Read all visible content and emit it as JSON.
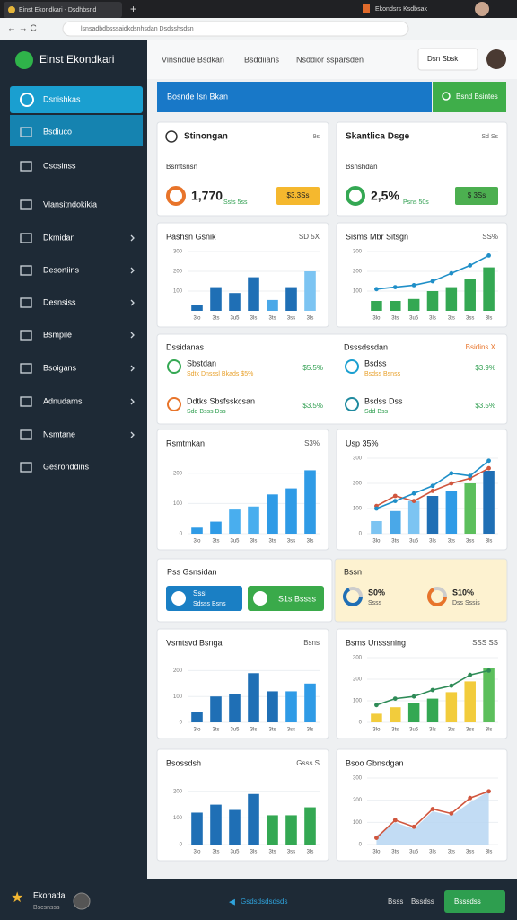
{
  "browser": {
    "tab": "Einst Ekondkari - Dsdhbsnd",
    "tab2": "Ekondsrs Ksdbsak",
    "url": "lsnsadbdbsssaidkdsnhsdan Dsdsshsdsn"
  },
  "sidebar": {
    "brand": "Einst Ekondkari",
    "items": [
      "Dsnishkas",
      "Bsdiuco",
      "Csosinss",
      "Vlansitndokikia",
      "Dkmidan",
      "Desortiins",
      "Desnsiss",
      "Bsmpile",
      "Bsoigans",
      "Adnudarns",
      "Nsmtane",
      "Gesronddins"
    ]
  },
  "header": {
    "links": [
      "Vinsndue Bsdkan",
      "Bsddiians",
      "Nsddior ssparsden"
    ],
    "dropdown": "Dsn Sbsk"
  },
  "banner": {
    "title": "Bosnde Isn Bkan",
    "button": "Bsnd Bsintes"
  },
  "stats": [
    {
      "title": "Stinongan",
      "corner": "9s",
      "label": "Bsmtsnsn",
      "value": "1,770",
      "note": "Ssfs 5ss",
      "tag": "$3.3Ss"
    },
    {
      "title": "Skantlica Dsge",
      "corner": "Sd Ss",
      "label": "Bsnshdan",
      "value": "2,5%",
      "note": "Psns 50s",
      "tag": "$ 3Ss"
    }
  ],
  "lists": {
    "left": {
      "title": "Dssidanas",
      "items": [
        {
          "title": "Sbstdan",
          "sub": "Sdtk Dnsssl Bkads $5%",
          "value": "$5.5%"
        },
        {
          "title": "Ddtks Sbsfsskcsan",
          "sub": "Sdd Bsss Dss",
          "value": "$3.5%"
        }
      ]
    },
    "right": {
      "title": "Dsssdssdan",
      "corner": "Bsidins X",
      "items": [
        {
          "title": "Bsdss",
          "sub": "Bsdss Bsnss",
          "value": "$3.9%"
        },
        {
          "title": "Bsdss Dss",
          "sub": "Sdd Bss",
          "value": "$3.5%"
        }
      ]
    }
  },
  "promo": {
    "title": "Pss Gsnsidan",
    "buttons": [
      {
        "title": "Sssi",
        "sub": "Sdsss Bsns"
      },
      {
        "title": "S1s Bssss"
      }
    ]
  },
  "summary": {
    "title": "Bssn",
    "items": [
      {
        "value": "S0%",
        "sub": "Ssss"
      },
      {
        "value": "S10%",
        "sub": "Dss Sssis"
      }
    ]
  },
  "charts": [
    {
      "title": "Pashsn Gsnik",
      "corner": "SD 5X",
      "type": "bar",
      "categories": [
        "3lo",
        "3ts",
        "3u5",
        "3ls",
        "3ts",
        "3ss",
        "3ls"
      ],
      "values": [
        30,
        120,
        90,
        170,
        55,
        120,
        200
      ],
      "colors": [
        "#1f6fb5",
        "#1f6fb5",
        "#1f6fb5",
        "#1f6fb5",
        "#4aa8e8",
        "#1f6fb5",
        "#7cc4f2"
      ],
      "ylim": [
        0,
        300
      ],
      "yticks": [
        100,
        200,
        300
      ]
    },
    {
      "title": "Sisms Mbr Sitsgn",
      "corner": "SS%",
      "type": "bar",
      "categories": [
        "3lo",
        "3ts",
        "3u5",
        "3ls",
        "3ts",
        "3ss",
        "3ls"
      ],
      "values": [
        50,
        50,
        60,
        100,
        120,
        160,
        220
      ],
      "colors": [
        "#34a853",
        "#34a853",
        "#34a853",
        "#34a853",
        "#34a853",
        "#34a853",
        "#34a853"
      ],
      "ylim": [
        0,
        300
      ],
      "yticks": [
        100,
        200,
        300
      ],
      "lines": [
        {
          "color": "#1f8fc8",
          "values": [
            110,
            120,
            130,
            150,
            190,
            230,
            280
          ]
        }
      ]
    },
    {
      "title": "Rsmtmkan",
      "corner": "S3%",
      "type": "bar",
      "categories": [
        "3lo",
        "3ts",
        "3u5",
        "3ls",
        "3ts",
        "3ss",
        "3ls"
      ],
      "values": [
        20,
        40,
        80,
        90,
        130,
        150,
        210
      ],
      "colors": [
        "#2f9be6",
        "#2f9be6",
        "#49aeee",
        "#49aeee",
        "#2f9be6",
        "#2f9be6",
        "#2f9be6"
      ],
      "ylim": [
        0,
        250
      ],
      "yticks": [
        0,
        100,
        200
      ]
    },
    {
      "title": "Usp 35%",
      "corner": "",
      "type": "bar",
      "categories": [
        "3lo",
        "3ts",
        "3u5",
        "3ls",
        "3ts",
        "3ss",
        "3ls"
      ],
      "values": [
        50,
        90,
        130,
        150,
        170,
        200,
        250
      ],
      "colors": [
        "#7cc4f2",
        "#4aa8e8",
        "#7cc4f2",
        "#1f6fb5",
        "#2f9be6",
        "#5cbf5c",
        "#1f6fb5"
      ],
      "ylim": [
        0,
        300
      ],
      "yticks": [
        0,
        100,
        200,
        300
      ],
      "lines": [
        {
          "color": "#d0563e",
          "values": [
            110,
            150,
            130,
            170,
            200,
            220,
            260
          ]
        },
        {
          "color": "#1f8fc8",
          "values": [
            100,
            130,
            160,
            190,
            240,
            230,
            290
          ]
        }
      ]
    },
    {
      "title": "Vsmtsvd Bsnga",
      "corner": "Bsns",
      "type": "bar",
      "categories": [
        "3lo",
        "3ts",
        "3u5",
        "3ls",
        "3ts",
        "3ss",
        "3ls"
      ],
      "values": [
        40,
        100,
        110,
        190,
        120,
        120,
        150
      ],
      "colors": [
        "#1f6fb5",
        "#1f6fb5",
        "#1f6fb5",
        "#1f6fb5",
        "#1f6fb5",
        "#2f9be6",
        "#2f9be6"
      ],
      "ylim": [
        0,
        250
      ],
      "yticks": [
        0,
        100,
        200
      ]
    },
    {
      "title": "Bsms Unsssning",
      "corner": "SSS SS",
      "type": "bar",
      "categories": [
        "3lo",
        "3ts",
        "3u5",
        "3ls",
        "3ts",
        "3ss",
        "3ls"
      ],
      "values": [
        40,
        70,
        90,
        110,
        140,
        190,
        250
      ],
      "colors": [
        "#f2cc3c",
        "#f2cc3c",
        "#34a853",
        "#34a853",
        "#f2cc3c",
        "#f2cc3c",
        "#5cbf5c"
      ],
      "ylim": [
        0,
        300
      ],
      "yticks": [
        0,
        100,
        200,
        300
      ],
      "lines": [
        {
          "color": "#2e8b57",
          "values": [
            80,
            110,
            120,
            150,
            170,
            220,
            240
          ]
        }
      ]
    },
    {
      "title": "Bsossdsh",
      "corner": "Gsss S",
      "type": "bar",
      "categories": [
        "3lo",
        "3ts",
        "3u5",
        "3ls",
        "3ts",
        "3ss",
        "3ls"
      ],
      "values": [
        120,
        150,
        130,
        190,
        110,
        110,
        140
      ],
      "colors": [
        "#1f6fb5",
        "#1f6fb5",
        "#1f6fb5",
        "#1f6fb5",
        "#34a853",
        "#34a853",
        "#34a853"
      ],
      "ylim": [
        0,
        250
      ],
      "yticks": [
        0,
        100,
        200
      ]
    },
    {
      "title": "Bsoo Gbnsdgan",
      "corner": "",
      "type": "area",
      "categories": [
        "3lo",
        "3ts",
        "3u5",
        "3ls",
        "3ts",
        "3ss",
        "3ls"
      ],
      "values": [
        40,
        100,
        70,
        150,
        130,
        190,
        240
      ],
      "color": "#b7d6f2",
      "ylim": [
        0,
        300
      ],
      "yticks": [
        0,
        100,
        200,
        300
      ],
      "lines": [
        {
          "color": "#d0563e",
          "values": [
            30,
            110,
            80,
            160,
            140,
            210,
            240
          ]
        }
      ]
    }
  ],
  "footer": {
    "brand": "Ekonada",
    "sub": "Bscsnsss",
    "link": "Gsdsdsdsdsds",
    "links": [
      "Bsss",
      "Bssdss"
    ],
    "button": "Bsssdss"
  }
}
